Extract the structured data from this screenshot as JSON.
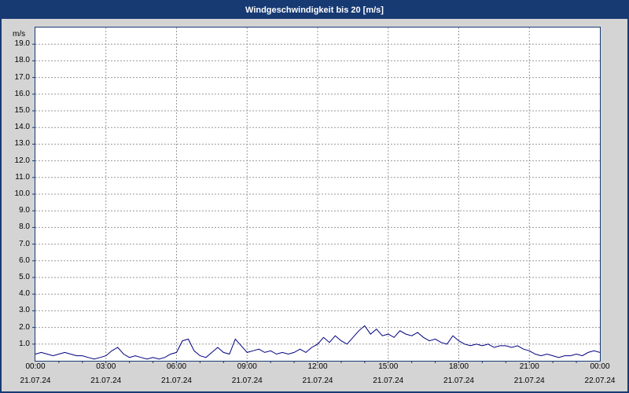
{
  "title": "Windgeschwindigkeit bis 20 [m/s]",
  "colors": {
    "title_bar": "#173a73",
    "line": "#000080",
    "grid": "#999999",
    "plot_border": "#173a73",
    "background": "#d4d4d4",
    "plot_background": "#ffffff"
  },
  "y_axis": {
    "unit": "m/s",
    "min": 0,
    "max": 20,
    "tick_step": 1,
    "tick_labels": [
      "19.0",
      "18.0",
      "17.0",
      "16.0",
      "15.0",
      "14.0",
      "13.0",
      "12.0",
      "11.0",
      "10.0",
      "9.0",
      "8.0",
      "7.0",
      "6.0",
      "5.0",
      "4.0",
      "3.0",
      "2.0",
      "1.0"
    ]
  },
  "x_axis": {
    "ticks": [
      {
        "hour": 0,
        "time": "00:00",
        "date": "21.07.24"
      },
      {
        "hour": 3,
        "time": "03:00",
        "date": "21.07.24"
      },
      {
        "hour": 6,
        "time": "06:00",
        "date": "21.07.24"
      },
      {
        "hour": 9,
        "time": "09:00",
        "date": "21.07.24"
      },
      {
        "hour": 12,
        "time": "12:00",
        "date": "21.07.24"
      },
      {
        "hour": 15,
        "time": "15:00",
        "date": "21.07.24"
      },
      {
        "hour": 18,
        "time": "18:00",
        "date": "21.07.24"
      },
      {
        "hour": 21,
        "time": "21:00",
        "date": "21.07.24"
      },
      {
        "hour": 24,
        "time": "00:00",
        "date": "22.07.24"
      }
    ]
  },
  "chart_data": {
    "type": "line",
    "title": "Windgeschwindigkeit bis 20 [m/s]",
    "series_name": "Windgeschwindigkeit",
    "xlabel": "",
    "ylabel": "m/s",
    "xlim": [
      0,
      24
    ],
    "ylim": [
      0,
      20
    ],
    "x_start": 0,
    "x_step_hours": 0.25,
    "values": [
      0.4,
      0.5,
      0.4,
      0.3,
      0.4,
      0.5,
      0.4,
      0.3,
      0.3,
      0.2,
      0.1,
      0.2,
      0.3,
      0.6,
      0.8,
      0.4,
      0.2,
      0.3,
      0.2,
      0.1,
      0.2,
      0.1,
      0.2,
      0.4,
      0.5,
      1.2,
      1.3,
      0.6,
      0.3,
      0.2,
      0.5,
      0.8,
      0.5,
      0.4,
      1.3,
      0.9,
      0.5,
      0.6,
      0.7,
      0.5,
      0.6,
      0.4,
      0.5,
      0.4,
      0.5,
      0.7,
      0.5,
      0.8,
      1.0,
      1.4,
      1.1,
      1.5,
      1.2,
      1.0,
      1.4,
      1.8,
      2.1,
      1.6,
      1.9,
      1.5,
      1.6,
      1.4,
      1.8,
      1.6,
      1.5,
      1.7,
      1.4,
      1.2,
      1.3,
      1.1,
      1.0,
      1.5,
      1.2,
      1.0,
      0.9,
      1.0,
      0.9,
      1.0,
      0.8,
      0.9,
      0.9,
      0.8,
      0.9,
      0.7,
      0.6,
      0.4,
      0.3,
      0.4,
      0.3,
      0.2,
      0.3,
      0.3,
      0.4,
      0.3,
      0.5,
      0.6,
      0.5
    ]
  }
}
